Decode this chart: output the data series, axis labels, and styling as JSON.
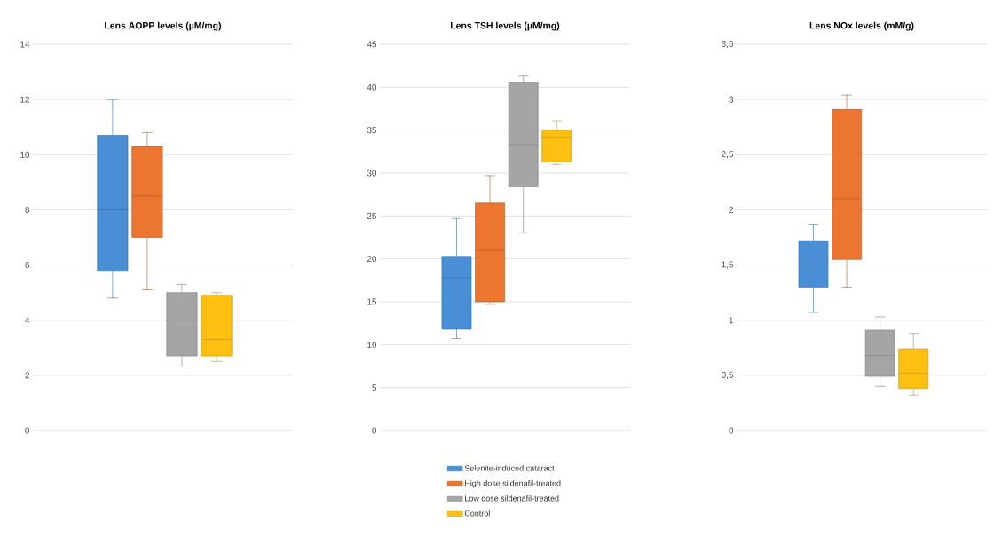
{
  "chart_data": [
    {
      "type": "box",
      "title": "Lens AOPP levels (µM/mg)",
      "categories": [
        null
      ],
      "ylim": [
        0,
        14
      ],
      "yticks": [
        0,
        2,
        4,
        6,
        8,
        10,
        12,
        14
      ],
      "grid": "y",
      "series": [
        {
          "color": "#4a8fd6",
          "boxes": [
            {
              "low": 4.8,
              "q1": 5.8,
              "median": 8,
              "q3": 10.7,
              "high": 12
            }
          ]
        },
        {
          "color": "#ec7530",
          "boxes": [
            {
              "low": 5.1,
              "q1": 7.0,
              "median": 8.5,
              "q3": 10.3,
              "high": 10.8
            }
          ]
        },
        {
          "color": "#a5a5a5",
          "boxes": [
            {
              "low": 2.3,
              "q1": 2.7,
              "median": 4.0,
              "q3": 5.0,
              "high": 5.3
            }
          ]
        },
        {
          "color": "#fdc010",
          "boxes": [
            {
              "low": 2.5,
              "q1": 2.7,
              "median": 3.3,
              "q3": 4.9,
              "high": 5.0
            }
          ]
        }
      ]
    },
    {
      "type": "box",
      "title": "Lens TSH levels (µM/mg)",
      "categories": [
        null
      ],
      "ylim": [
        0,
        45
      ],
      "yticks": [
        0,
        5,
        10,
        15,
        20,
        25,
        30,
        35,
        40,
        45
      ],
      "grid": "y",
      "legend": "bottom",
      "series": [
        {
          "name": "Selenite-induced cataract",
          "color": "#4a8fd6",
          "boxes": [
            {
              "low": 10.7,
              "q1": 11.8,
              "median": 17.8,
              "q3": 20.3,
              "high": 24.7
            }
          ]
        },
        {
          "name": "High dose sildenafil-treated",
          "color": "#ec7530",
          "boxes": [
            {
              "low": 14.7,
              "q1": 15.0,
              "median": 21,
              "q3": 26.5,
              "high": 29.7
            }
          ]
        },
        {
          "name": "Low dose sildenafil-treated",
          "color": "#a5a5a5",
          "boxes": [
            {
              "low": 23.0,
              "q1": 28.4,
              "median": 33.3,
              "q3": 40.6,
              "high": 41.3
            }
          ]
        },
        {
          "name": "Control",
          "color": "#fdc010",
          "boxes": [
            {
              "low": 31.0,
              "q1": 31.3,
              "median": 34.2,
              "q3": 35.0,
              "high": 36.1
            }
          ]
        }
      ]
    },
    {
      "type": "box",
      "title": "Lens NOx levels (mM/g)",
      "categories": [
        null
      ],
      "ylim": [
        0,
        3.5
      ],
      "yticks": [
        0,
        {
          "value": 0.5,
          "label": "0,5"
        },
        1,
        {
          "value": 1.5,
          "label": "1,5"
        },
        2,
        {
          "value": 2.5,
          "label": "2,5"
        },
        3,
        {
          "value": 3.5,
          "label": "3,5"
        }
      ],
      "grid": "y",
      "series": [
        {
          "color": "#4a8fd6",
          "boxes": [
            {
              "low": 1.07,
              "q1": 1.3,
              "median": 1.5,
              "q3": 1.72,
              "high": 1.87
            }
          ]
        },
        {
          "color": "#ec7530",
          "boxes": [
            {
              "low": 1.3,
              "q1": 1.55,
              "median": 2.1,
              "q3": 2.91,
              "high": 3.04
            }
          ]
        },
        {
          "color": "#a5a5a5",
          "boxes": [
            {
              "low": 0.4,
              "q1": 0.49,
              "median": 0.68,
              "q3": 0.91,
              "high": 1.03
            }
          ]
        },
        {
          "color": "#fdc010",
          "boxes": [
            {
              "low": 0.32,
              "q1": 0.38,
              "median": 0.52,
              "q3": 0.74,
              "high": 0.88
            }
          ]
        }
      ]
    }
  ]
}
